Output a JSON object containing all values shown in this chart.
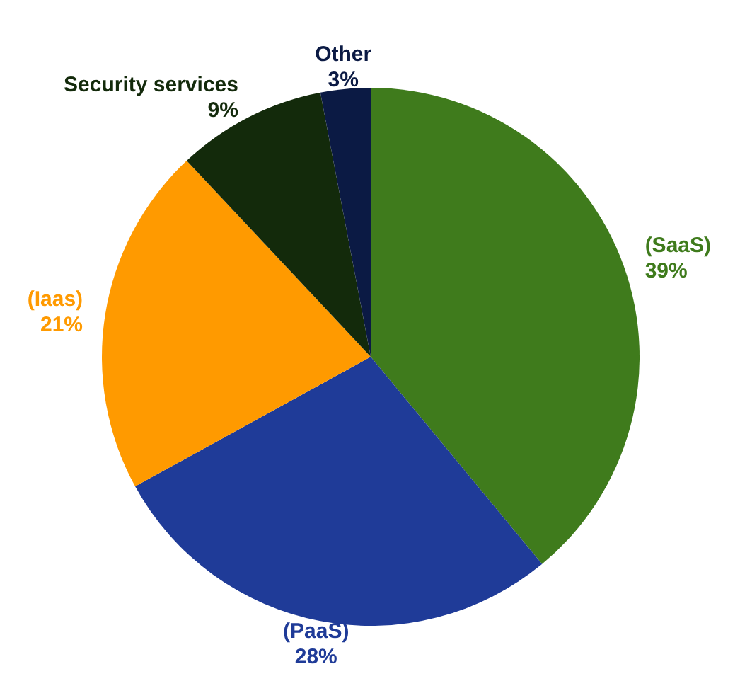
{
  "chart_data": {
    "type": "pie",
    "categories": [
      "(SaaS)",
      "(PaaS)",
      "(Iaas)",
      "Security services",
      "Other"
    ],
    "values": [
      39,
      28,
      21,
      9,
      3
    ],
    "value_labels": [
      "39%",
      "28%",
      "21%",
      "9%",
      "3%"
    ],
    "colors": [
      "#3f7b1c",
      "#1f3b98",
      "#ff9a00",
      "#132a0b",
      "#0b1a44"
    ]
  }
}
